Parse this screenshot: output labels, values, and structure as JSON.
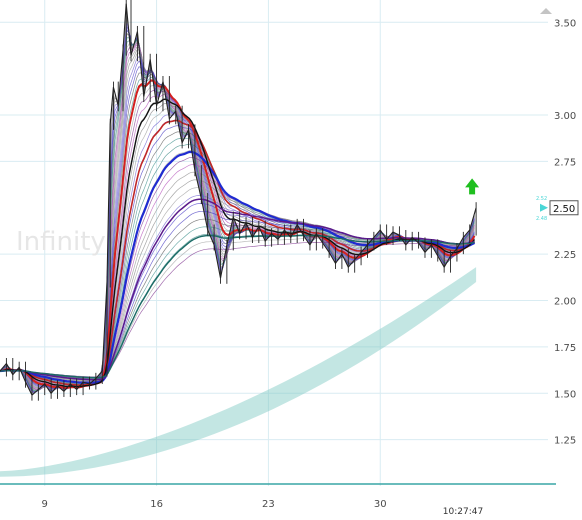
{
  "chart_data": {
    "type": "line",
    "description_free": true,
    "watermark": "Infinity",
    "y_ticks": [
      {
        "value": 3.5,
        "label": "3.50"
      },
      {
        "value": 3.0,
        "label": "3.00"
      },
      {
        "value": 2.75,
        "label": "2.75"
      },
      {
        "value": 2.25,
        "label": "2.25"
      },
      {
        "value": 2.0,
        "label": "2.00"
      },
      {
        "value": 1.75,
        "label": "1.75"
      },
      {
        "value": 1.5,
        "label": "1.50"
      },
      {
        "value": 1.25,
        "label": "1.25"
      }
    ],
    "x_ticks": [
      {
        "day": 9,
        "label": "9"
      },
      {
        "day": 16,
        "label": "16"
      },
      {
        "day": 23,
        "label": "23"
      },
      {
        "day": 30,
        "label": "30"
      }
    ],
    "time_label": "10:27:47",
    "x_range": [
      6.2,
      40.5
    ],
    "y_range": [
      1.0,
      3.62
    ],
    "last_price": {
      "value": 2.5,
      "label": "2.50"
    },
    "marker_labels": {
      "upper": "2.52",
      "lower": "2.48"
    },
    "signal": {
      "type": "up-arrow",
      "value": 2.61,
      "color": "#1fbf1f"
    },
    "colors": {
      "price": "#222222",
      "teal": "#7ac8c0",
      "grid": "#d9ecf2",
      "axis_text": "#4b4b4b",
      "last_price_box": "#49d6d6",
      "baseline": "#39a6a6"
    },
    "price_series": [
      {
        "x": 6.2,
        "y": 1.62
      },
      {
        "x": 6.6,
        "y": 1.66
      },
      {
        "x": 7.0,
        "y": 1.6
      },
      {
        "x": 7.4,
        "y": 1.64
      },
      {
        "x": 7.8,
        "y": 1.56
      },
      {
        "x": 8.2,
        "y": 1.49
      },
      {
        "x": 8.6,
        "y": 1.52
      },
      {
        "x": 9.0,
        "y": 1.55
      },
      {
        "x": 9.4,
        "y": 1.5
      },
      {
        "x": 9.8,
        "y": 1.54
      },
      {
        "x": 10.2,
        "y": 1.51
      },
      {
        "x": 10.6,
        "y": 1.55
      },
      {
        "x": 11.0,
        "y": 1.52
      },
      {
        "x": 11.4,
        "y": 1.56
      },
      {
        "x": 11.8,
        "y": 1.55
      },
      {
        "x": 12.2,
        "y": 1.58
      },
      {
        "x": 12.6,
        "y": 1.62
      },
      {
        "x": 12.9,
        "y": 2.1
      },
      {
        "x": 13.1,
        "y": 2.95
      },
      {
        "x": 13.3,
        "y": 3.15
      },
      {
        "x": 13.6,
        "y": 3.05
      },
      {
        "x": 13.9,
        "y": 3.35
      },
      {
        "x": 14.1,
        "y": 3.6
      },
      {
        "x": 14.4,
        "y": 3.32
      },
      {
        "x": 14.8,
        "y": 3.45
      },
      {
        "x": 15.2,
        "y": 3.1
      },
      {
        "x": 15.6,
        "y": 3.3
      },
      {
        "x": 16.0,
        "y": 3.05
      },
      {
        "x": 16.4,
        "y": 3.18
      },
      {
        "x": 16.8,
        "y": 2.98
      },
      {
        "x": 17.2,
        "y": 3.02
      },
      {
        "x": 17.6,
        "y": 2.85
      },
      {
        "x": 18.0,
        "y": 2.92
      },
      {
        "x": 18.4,
        "y": 2.7
      },
      {
        "x": 18.8,
        "y": 2.55
      },
      {
        "x": 19.2,
        "y": 2.38
      },
      {
        "x": 19.6,
        "y": 2.3
      },
      {
        "x": 20.0,
        "y": 2.12
      },
      {
        "x": 20.4,
        "y": 2.3
      },
      {
        "x": 20.8,
        "y": 2.45
      },
      {
        "x": 21.2,
        "y": 2.36
      },
      {
        "x": 21.6,
        "y": 2.42
      },
      {
        "x": 22.0,
        "y": 2.34
      },
      {
        "x": 22.4,
        "y": 2.4
      },
      {
        "x": 22.8,
        "y": 2.32
      },
      {
        "x": 23.2,
        "y": 2.36
      },
      {
        "x": 23.6,
        "y": 2.33
      },
      {
        "x": 24.0,
        "y": 2.38
      },
      {
        "x": 24.4,
        "y": 2.34
      },
      {
        "x": 24.8,
        "y": 2.41
      },
      {
        "x": 25.2,
        "y": 2.35
      },
      {
        "x": 25.6,
        "y": 2.3
      },
      {
        "x": 26.0,
        "y": 2.36
      },
      {
        "x": 26.4,
        "y": 2.31
      },
      {
        "x": 26.8,
        "y": 2.26
      },
      {
        "x": 27.2,
        "y": 2.2
      },
      {
        "x": 27.6,
        "y": 2.25
      },
      {
        "x": 28.0,
        "y": 2.18
      },
      {
        "x": 28.4,
        "y": 2.22
      },
      {
        "x": 28.8,
        "y": 2.26
      },
      {
        "x": 29.2,
        "y": 2.3
      },
      {
        "x": 29.6,
        "y": 2.34
      },
      {
        "x": 30.0,
        "y": 2.38
      },
      {
        "x": 30.4,
        "y": 2.33
      },
      {
        "x": 30.8,
        "y": 2.37
      },
      {
        "x": 31.2,
        "y": 2.35
      },
      {
        "x": 31.6,
        "y": 2.3
      },
      {
        "x": 32.0,
        "y": 2.34
      },
      {
        "x": 32.4,
        "y": 2.31
      },
      {
        "x": 32.8,
        "y": 2.26
      },
      {
        "x": 33.2,
        "y": 2.3
      },
      {
        "x": 33.6,
        "y": 2.24
      },
      {
        "x": 34.0,
        "y": 2.18
      },
      {
        "x": 34.4,
        "y": 2.24
      },
      {
        "x": 34.8,
        "y": 2.28
      },
      {
        "x": 35.2,
        "y": 2.34
      },
      {
        "x": 35.6,
        "y": 2.38
      },
      {
        "x": 36.0,
        "y": 2.5
      }
    ],
    "ribbon_end_x": 36.0,
    "teal_band": {
      "start": [
        6.2,
        1.05,
        1.08
      ],
      "end": [
        36.0,
        2.1,
        2.18
      ]
    }
  }
}
